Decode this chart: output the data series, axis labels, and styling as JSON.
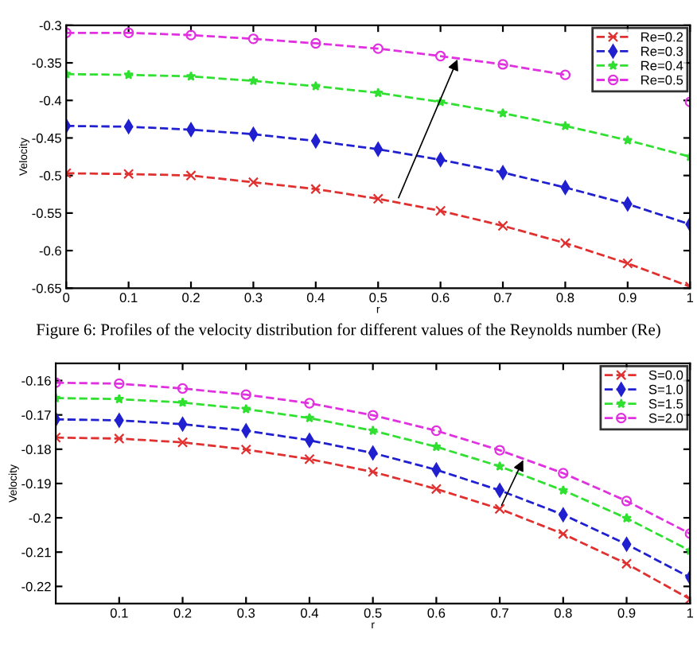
{
  "chart_data": [
    {
      "type": "line",
      "xlabel": "r",
      "ylabel": "Velocity",
      "annotations": [
        "Figure 6: Profiles of the velocity distribution for different values of the Reynolds number (Re)"
      ],
      "x": [
        0,
        0.1,
        0.2,
        0.3,
        0.4,
        0.5,
        0.6,
        0.7,
        0.8,
        0.9,
        1
      ],
      "series": [
        {
          "name": "Re=0.2",
          "color": "#e03030",
          "marker": "cross",
          "values": [
            -0.497,
            -0.498,
            -0.5,
            -0.509,
            -0.518,
            -0.531,
            -0.547,
            -0.567,
            -0.59,
            -0.617,
            -0.648
          ]
        },
        {
          "name": "Re=0.3",
          "color": "#2020d0",
          "marker": "diamond",
          "values": [
            -0.434,
            -0.435,
            -0.439,
            -0.445,
            -0.454,
            -0.465,
            -0.479,
            -0.496,
            -0.516,
            -0.538,
            -0.565
          ]
        },
        {
          "name": "Re=0.4",
          "color": "#30e030",
          "marker": "star",
          "values": [
            -0.365,
            -0.366,
            -0.368,
            -0.374,
            -0.381,
            -0.39,
            -0.402,
            -0.417,
            -0.434,
            -0.453,
            -0.475
          ]
        },
        {
          "name": "Re=0.5",
          "color": "#e030e0",
          "marker": "circle",
          "values": [
            -0.31,
            -0.31,
            -0.313,
            -0.318,
            -0.324,
            -0.331,
            -0.341,
            -0.352,
            -0.366,
            null,
            -0.402
          ]
        }
      ],
      "xlim": [
        0,
        1
      ],
      "xticks": [
        0,
        0.1,
        0.2,
        0.3,
        0.4,
        0.5,
        0.6,
        0.7,
        0.8,
        0.9,
        1
      ],
      "ylim": [
        -0.65,
        -0.3
      ],
      "yticks": [
        -0.65,
        -0.6,
        -0.55,
        -0.5,
        -0.45,
        -0.4,
        -0.35,
        -0.3
      ],
      "line_style": "dashed",
      "grid": false,
      "legend": "top right"
    },
    {
      "type": "line",
      "xlabel": "r",
      "ylabel": "Velocity",
      "x": [
        0,
        0.1,
        0.2,
        0.3,
        0.4,
        0.5,
        0.6,
        0.7,
        0.8,
        0.9,
        1
      ],
      "series": [
        {
          "name": "S=0.0",
          "color": "#e03030",
          "marker": "cross",
          "values": [
            -0.1766,
            -0.1769,
            -0.178,
            -0.1801,
            -0.1829,
            -0.1866,
            -0.1916,
            -0.1974,
            -0.2047,
            -0.2134,
            -0.2237
          ]
        },
        {
          "name": "S=1.0",
          "color": "#2020d0",
          "marker": "diamond",
          "values": [
            -0.1713,
            -0.1716,
            -0.1727,
            -0.1746,
            -0.1774,
            -0.1811,
            -0.186,
            -0.192,
            -0.1991,
            -0.2077,
            -0.2174
          ]
        },
        {
          "name": "S=1.5",
          "color": "#30e030",
          "marker": "star",
          "values": [
            -0.1651,
            -0.1654,
            -0.1664,
            -0.1683,
            -0.1709,
            -0.1746,
            -0.1793,
            -0.185,
            -0.192,
            -0.2001,
            -0.2096
          ]
        },
        {
          "name": "S=2.0",
          "color": "#e030e0",
          "marker": "circle",
          "values": [
            -0.1606,
            -0.1609,
            -0.1623,
            -0.1641,
            -0.1666,
            -0.1701,
            -0.1746,
            -0.1803,
            -0.187,
            -0.1951,
            -0.2046
          ]
        }
      ],
      "xlim": [
        0,
        1
      ],
      "xticks": [
        0.1,
        0.2,
        0.3,
        0.4,
        0.5,
        0.6,
        0.7,
        0.8,
        0.9,
        1
      ],
      "ylim": [
        -0.225,
        -0.155
      ],
      "yticks": [
        -0.22,
        -0.21,
        -0.2,
        -0.19,
        -0.18,
        -0.17,
        -0.16
      ],
      "line_style": "dashed",
      "grid": false,
      "legend": "top right"
    }
  ]
}
